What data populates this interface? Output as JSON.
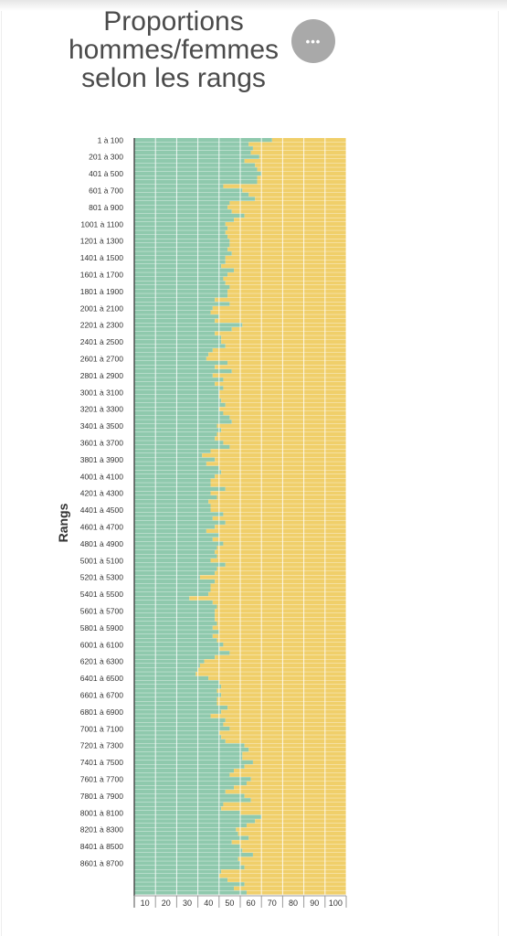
{
  "chart_data": {
    "type": "bar",
    "orientation": "horizontal",
    "stacked": true,
    "title": "Proportions hommes/femmes selon les rangs",
    "ylabel": "Rangs",
    "xlabel": "",
    "xlim": [
      0,
      100
    ],
    "x_ticks": [
      10,
      20,
      30,
      40,
      50,
      60,
      70,
      80,
      90,
      100
    ],
    "grid": true,
    "colors": {
      "series1": "#8fc9ad",
      "series2": "#f0cf6a"
    },
    "categories_labeled": [
      "1 à 100",
      "201 à 300",
      "401 à 500",
      "601 à 700",
      "801 à 900",
      "1001 à 1100",
      "1201 à 1300",
      "1401 à 1500",
      "1601 à 1700",
      "1801 à 1900",
      "2001 à 2100",
      "2201 à 2300",
      "2401 à 2500",
      "2601 à 2700",
      "2801 à 2900",
      "3001 à 3100",
      "3201 à 3300",
      "3401 à 3500",
      "3601 à 3700",
      "3801 à 3900",
      "4001 à 4100",
      "4201 à 4300",
      "4401 à 4500",
      "4601 à 4700",
      "4801 à 4900",
      "5001 à 5100",
      "5201 à 5300",
      "5401 à 5500",
      "5601 à 5700",
      "5801 à 5900",
      "6001 à 6100",
      "6201 à 6300",
      "6401 à 6500",
      "6601 à 6700",
      "6801 à 6900",
      "7001 à 7100",
      "7201 à 7300",
      "7401 à 7500",
      "7601 à 7700",
      "7801 à 7900",
      "8001 à 8100",
      "8201 à 8300",
      "8401 à 8500",
      "8601 à 8700"
    ],
    "series": [
      {
        "values": [
          65,
          54,
          56,
          55,
          59,
          52,
          57,
          58,
          60,
          58,
          58,
          42,
          51,
          54,
          57,
          45,
          44,
          46,
          52,
          47,
          43,
          44,
          43,
          44,
          45,
          45,
          44,
          46,
          43,
          43,
          41,
          47,
          44,
          42,
          43,
          45,
          44,
          44,
          38,
          45,
          37,
          36,
          40,
          38,
          51,
          46,
          38,
          41,
          41,
          43,
          37,
          35,
          34,
          44,
          38,
          46,
          37,
          42,
          38,
          42,
          40,
          40,
          41,
          43,
          40,
          42,
          45,
          46,
          39,
          41,
          39,
          38,
          42,
          45,
          36,
          32,
          38,
          34,
          40,
          41,
          38,
          36,
          36,
          43,
          36,
          39,
          35,
          36,
          36,
          42,
          37,
          43,
          38,
          34,
          40,
          37,
          42,
          39,
          38,
          39,
          36,
          43,
          39,
          38,
          31,
          38,
          36,
          36,
          35,
          26,
          37,
          39,
          38,
          38,
          38,
          39,
          37,
          40,
          37,
          39,
          42,
          40,
          45,
          38,
          33,
          31,
          30,
          29,
          35,
          40,
          41,
          39,
          41,
          39,
          39,
          44,
          41,
          36,
          43,
          42,
          45,
          40,
          41,
          43,
          52,
          54,
          51,
          51,
          56,
          52,
          47,
          45,
          55,
          53,
          47,
          43,
          52,
          55,
          42,
          41,
          50,
          60,
          57,
          53,
          48,
          49,
          54,
          46,
          50,
          51,
          56,
          49,
          50,
          52,
          41,
          40,
          44,
          52,
          47,
          53
        ]
      },
      {
        "values": [
          35,
          46,
          44,
          45,
          41,
          48,
          43,
          42,
          40,
          42,
          42,
          58,
          49,
          46,
          43,
          55,
          56,
          54,
          48,
          53,
          57,
          56,
          57,
          56,
          55,
          55,
          56,
          54,
          57,
          57,
          59,
          53,
          56,
          58,
          57,
          55,
          56,
          56,
          62,
          55,
          63,
          64,
          60,
          62,
          49,
          54,
          62,
          59,
          59,
          57,
          63,
          65,
          66,
          56,
          62,
          54,
          63,
          58,
          62,
          58,
          60,
          60,
          59,
          57,
          60,
          58,
          55,
          54,
          61,
          59,
          61,
          62,
          58,
          55,
          64,
          68,
          62,
          66,
          60,
          59,
          62,
          64,
          64,
          57,
          64,
          61,
          65,
          64,
          64,
          58,
          63,
          57,
          62,
          66,
          60,
          63,
          58,
          61,
          62,
          61,
          64,
          57,
          61,
          62,
          69,
          62,
          64,
          64,
          65,
          74,
          63,
          61,
          62,
          62,
          62,
          61,
          63,
          60,
          63,
          61,
          58,
          60,
          55,
          62,
          67,
          69,
          70,
          71,
          65,
          60,
          59,
          61,
          59,
          61,
          61,
          56,
          59,
          64,
          57,
          58,
          55,
          60,
          59,
          57,
          48,
          46,
          49,
          49,
          44,
          48,
          53,
          55,
          45,
          47,
          53,
          57,
          48,
          45,
          58,
          59,
          50,
          40,
          43,
          47,
          52,
          51,
          46,
          54,
          50,
          49,
          44,
          51,
          50,
          48,
          59,
          60,
          56,
          48,
          53,
          47
        ]
      }
    ]
  },
  "ui": {
    "more_button_label": "•••"
  }
}
